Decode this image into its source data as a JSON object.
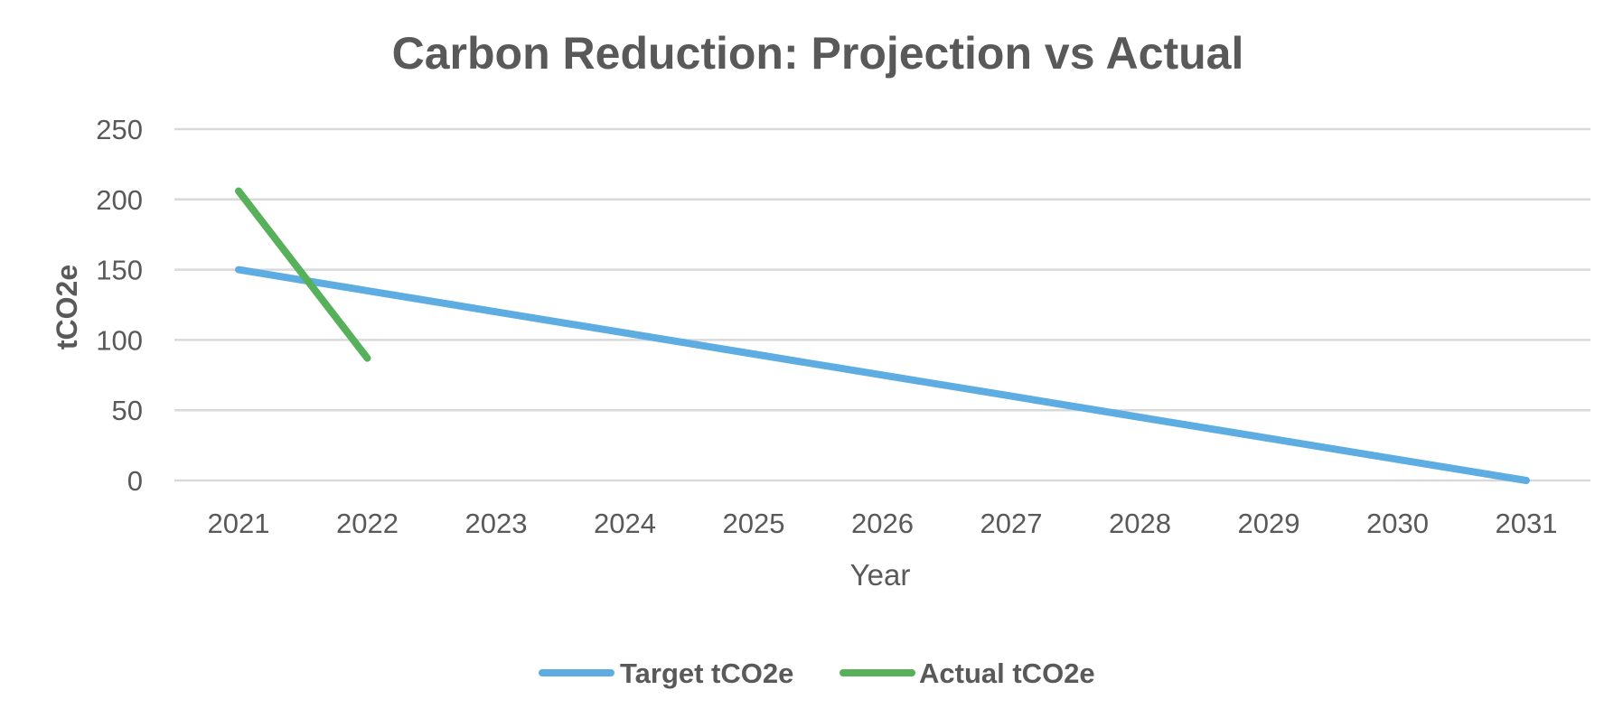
{
  "chart_data": {
    "type": "line",
    "title": "Carbon Reduction: Projection vs Actual",
    "xlabel": "Year",
    "ylabel": "tCO2e",
    "x": [
      2021,
      2022,
      2023,
      2024,
      2025,
      2026,
      2027,
      2028,
      2029,
      2030,
      2031
    ],
    "x_tick_labels": [
      "2021",
      "2022",
      "2023",
      "2024",
      "2025",
      "2026",
      "2027",
      "2028",
      "2029",
      "2030",
      "2031"
    ],
    "ylim": [
      0,
      250
    ],
    "y_ticks": [
      0,
      50,
      100,
      150,
      200,
      250
    ],
    "y_tick_labels": [
      "0",
      "50",
      "100",
      "150",
      "200",
      "250"
    ],
    "grid": true,
    "legend_position": "bottom-center",
    "series": [
      {
        "name": "Target tCO2e",
        "color": "#5dade2",
        "values": [
          150,
          135,
          120,
          105,
          90,
          75,
          60,
          45,
          30,
          15,
          0
        ]
      },
      {
        "name": "Actual tCO2e",
        "color": "#57b05a",
        "values": [
          206,
          87,
          null,
          null,
          null,
          null,
          null,
          null,
          null,
          null,
          null
        ]
      }
    ]
  },
  "colors": {
    "title": "#595959",
    "axis_text": "#595959",
    "gridline": "#d9d9d9",
    "background": "#ffffff"
  }
}
